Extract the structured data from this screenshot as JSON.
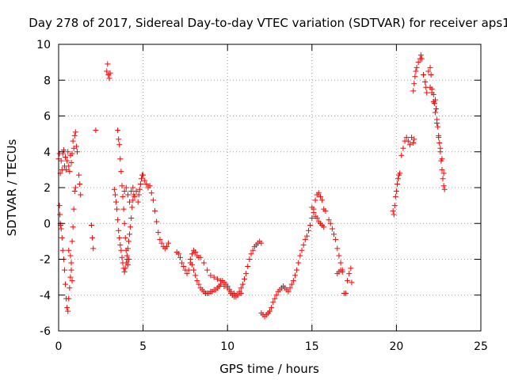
{
  "chart_data": {
    "type": "scatter",
    "title": "Day 278 of 2017, Sidereal Day-to-day VTEC variation (SDTVAR) for receiver aps1",
    "xlabel": "GPS time / hours",
    "ylabel": "SDTVAR / TECUs",
    "xlim": [
      0,
      25
    ],
    "ylim": [
      -6,
      10
    ],
    "xticks": [
      0,
      5,
      10,
      15,
      20,
      25
    ],
    "yticks": [
      -6,
      -4,
      -2,
      0,
      2,
      4,
      6,
      8,
      10
    ],
    "grid": true,
    "marker": "+",
    "color": "#ff0000",
    "series": [
      {
        "name": "aps1",
        "points": [
          [
            0.0,
            3.6
          ],
          [
            0.05,
            3.9
          ],
          [
            0.1,
            2.8
          ],
          [
            0.15,
            3.5
          ],
          [
            0.2,
            3.0
          ],
          [
            0.25,
            3.9
          ],
          [
            0.3,
            4.1
          ],
          [
            0.35,
            3.2
          ],
          [
            0.4,
            3.7
          ],
          [
            0.45,
            3.0
          ],
          [
            0.5,
            3.5
          ],
          [
            0.55,
            4.0
          ],
          [
            0.6,
            3.2
          ],
          [
            0.65,
            2.9
          ],
          [
            0.7,
            3.8
          ],
          [
            0.75,
            3.4
          ],
          [
            0.8,
            3.9
          ],
          [
            0.85,
            4.6
          ],
          [
            0.9,
            4.2
          ],
          [
            0.95,
            4.9
          ],
          [
            1.0,
            5.1
          ],
          [
            1.05,
            4.3
          ],
          [
            1.1,
            4.0
          ],
          [
            0.05,
            1.0
          ],
          [
            0.08,
            0.5
          ],
          [
            0.1,
            0.0
          ],
          [
            0.12,
            -0.1
          ],
          [
            0.15,
            -0.3
          ],
          [
            0.2,
            -0.8
          ],
          [
            0.25,
            -1.5
          ],
          [
            0.3,
            -2.0
          ],
          [
            0.35,
            -2.6
          ],
          [
            0.4,
            -3.4
          ],
          [
            0.45,
            -4.2
          ],
          [
            0.5,
            -4.7
          ],
          [
            0.55,
            -4.9
          ],
          [
            0.6,
            -4.2
          ],
          [
            0.65,
            -3.6
          ],
          [
            0.7,
            -3.0
          ],
          [
            0.75,
            -2.2
          ],
          [
            0.8,
            -1.0
          ],
          [
            0.85,
            -0.2
          ],
          [
            0.9,
            0.8
          ],
          [
            0.95,
            1.8
          ],
          [
            1.0,
            2.0
          ],
          [
            0.6,
            -1.5
          ],
          [
            0.7,
            -1.8
          ],
          [
            0.75,
            -2.6
          ],
          [
            0.8,
            -3.2
          ],
          [
            1.2,
            2.7
          ],
          [
            1.25,
            2.2
          ],
          [
            1.3,
            1.6
          ],
          [
            1.95,
            -0.1
          ],
          [
            2.0,
            -0.8
          ],
          [
            2.05,
            -1.4
          ],
          [
            2.2,
            5.2
          ],
          [
            2.85,
            8.5
          ],
          [
            2.9,
            8.9
          ],
          [
            2.95,
            8.3
          ],
          [
            3.0,
            8.1
          ],
          [
            3.05,
            8.4
          ],
          [
            3.3,
            1.9
          ],
          [
            3.35,
            1.6
          ],
          [
            3.4,
            1.2
          ],
          [
            3.45,
            0.8
          ],
          [
            3.5,
            0.2
          ],
          [
            3.55,
            -0.4
          ],
          [
            3.6,
            -0.8
          ],
          [
            3.65,
            -1.2
          ],
          [
            3.7,
            -1.5
          ],
          [
            3.75,
            -1.9
          ],
          [
            3.8,
            -2.2
          ],
          [
            3.85,
            -2.5
          ],
          [
            3.9,
            -2.7
          ],
          [
            3.95,
            -2.5
          ],
          [
            4.0,
            -2.2
          ],
          [
            4.05,
            -1.8
          ],
          [
            4.1,
            -1.4
          ],
          [
            4.15,
            -1.0
          ],
          [
            4.2,
            -0.6
          ],
          [
            4.25,
            -0.2
          ],
          [
            4.3,
            0.3
          ],
          [
            4.35,
            0.9
          ],
          [
            4.4,
            1.3
          ],
          [
            4.45,
            1.6
          ],
          [
            3.5,
            5.2
          ],
          [
            3.55,
            4.7
          ],
          [
            3.6,
            4.4
          ],
          [
            3.65,
            3.6
          ],
          [
            3.7,
            2.9
          ],
          [
            3.75,
            2.1
          ],
          [
            3.8,
            1.5
          ],
          [
            3.85,
            0.8
          ],
          [
            3.9,
            0.0
          ],
          [
            3.95,
            -0.8
          ],
          [
            4.0,
            -1.5
          ],
          [
            4.05,
            -2.0
          ],
          [
            4.1,
            -2.3
          ],
          [
            4.15,
            -2.0
          ],
          [
            3.9,
            1.8
          ],
          [
            4.0,
            2.0
          ],
          [
            4.1,
            1.6
          ],
          [
            4.2,
            1.2
          ],
          [
            4.3,
            1.8
          ],
          [
            4.4,
            2.0
          ],
          [
            4.5,
            1.5
          ],
          [
            4.6,
            1.8
          ],
          [
            4.7,
            1.2
          ],
          [
            4.75,
            1.6
          ],
          [
            4.8,
            1.9
          ],
          [
            4.85,
            2.2
          ],
          [
            4.9,
            2.5
          ],
          [
            4.95,
            2.7
          ],
          [
            5.0,
            2.7
          ],
          [
            5.1,
            2.4
          ],
          [
            5.2,
            2.2
          ],
          [
            5.3,
            2.0
          ],
          [
            5.4,
            2.1
          ],
          [
            5.5,
            1.7
          ],
          [
            5.6,
            1.3
          ],
          [
            5.7,
            0.7
          ],
          [
            5.8,
            0.1
          ],
          [
            5.9,
            -0.5
          ],
          [
            6.0,
            -0.9
          ],
          [
            6.1,
            -1.1
          ],
          [
            6.2,
            -1.3
          ],
          [
            6.3,
            -1.4
          ],
          [
            6.4,
            -1.3
          ],
          [
            6.5,
            -1.1
          ],
          [
            7.0,
            -1.6
          ],
          [
            7.1,
            -1.7
          ],
          [
            7.2,
            -1.9
          ],
          [
            7.3,
            -2.2
          ],
          [
            7.4,
            -2.4
          ],
          [
            7.5,
            -2.6
          ],
          [
            7.6,
            -2.8
          ],
          [
            7.7,
            -2.6
          ],
          [
            7.8,
            -2.2
          ],
          [
            7.9,
            -1.7
          ],
          [
            8.0,
            -1.5
          ],
          [
            8.1,
            -1.6
          ],
          [
            8.2,
            -1.8
          ],
          [
            8.3,
            -1.9
          ],
          [
            7.8,
            -2.0
          ],
          [
            7.9,
            -2.3
          ],
          [
            8.0,
            -2.6
          ],
          [
            8.1,
            -2.9
          ],
          [
            8.2,
            -3.2
          ],
          [
            8.3,
            -3.4
          ],
          [
            8.4,
            -3.6
          ],
          [
            8.5,
            -3.7
          ],
          [
            8.6,
            -3.8
          ],
          [
            8.7,
            -3.9
          ],
          [
            8.8,
            -3.9
          ],
          [
            8.9,
            -3.9
          ],
          [
            9.0,
            -3.8
          ],
          [
            9.1,
            -3.8
          ],
          [
            9.2,
            -3.7
          ],
          [
            9.3,
            -3.7
          ],
          [
            9.4,
            -3.6
          ],
          [
            9.5,
            -3.5
          ],
          [
            9.6,
            -3.4
          ],
          [
            8.4,
            -1.9
          ],
          [
            8.6,
            -2.2
          ],
          [
            8.8,
            -2.6
          ],
          [
            9.0,
            -2.9
          ],
          [
            9.2,
            -3.0
          ],
          [
            9.4,
            -3.1
          ],
          [
            9.6,
            -3.2
          ],
          [
            9.8,
            -3.5
          ],
          [
            10.0,
            -3.6
          ],
          [
            10.2,
            -3.8
          ],
          [
            10.4,
            -3.9
          ],
          [
            10.6,
            -4.0
          ],
          [
            10.8,
            -3.9
          ],
          [
            9.7,
            -3.2
          ],
          [
            9.8,
            -3.3
          ],
          [
            9.9,
            -3.4
          ],
          [
            10.0,
            -3.5
          ],
          [
            10.1,
            -3.7
          ],
          [
            10.2,
            -3.9
          ],
          [
            10.3,
            -4.0
          ],
          [
            10.4,
            -4.1
          ],
          [
            10.5,
            -4.1
          ],
          [
            10.6,
            -4.0
          ],
          [
            10.7,
            -3.8
          ],
          [
            10.8,
            -3.6
          ],
          [
            10.9,
            -3.4
          ],
          [
            11.0,
            -3.1
          ],
          [
            11.1,
            -2.8
          ],
          [
            11.2,
            -2.4
          ],
          [
            11.3,
            -2.0
          ],
          [
            11.4,
            -1.7
          ],
          [
            11.5,
            -1.5
          ],
          [
            11.6,
            -1.3
          ],
          [
            11.7,
            -1.2
          ],
          [
            11.8,
            -1.1
          ],
          [
            11.9,
            -1.0
          ],
          [
            12.0,
            -1.1
          ],
          [
            12.0,
            -5.0
          ],
          [
            12.1,
            -5.1
          ],
          [
            12.2,
            -5.2
          ],
          [
            12.3,
            -5.1
          ],
          [
            12.4,
            -5.0
          ],
          [
            12.5,
            -4.9
          ],
          [
            12.6,
            -4.7
          ],
          [
            12.7,
            -4.4
          ],
          [
            12.8,
            -4.2
          ],
          [
            12.9,
            -4.0
          ],
          [
            13.0,
            -3.8
          ],
          [
            13.1,
            -3.7
          ],
          [
            13.2,
            -3.6
          ],
          [
            13.3,
            -3.5
          ],
          [
            13.4,
            -3.6
          ],
          [
            13.5,
            -3.7
          ],
          [
            13.6,
            -3.8
          ],
          [
            13.7,
            -3.6
          ],
          [
            13.8,
            -3.4
          ],
          [
            13.9,
            -3.2
          ],
          [
            14.0,
            -2.9
          ],
          [
            14.1,
            -2.6
          ],
          [
            14.2,
            -2.2
          ],
          [
            14.3,
            -1.8
          ],
          [
            14.4,
            -1.5
          ],
          [
            14.5,
            -1.2
          ],
          [
            14.6,
            -0.9
          ],
          [
            14.7,
            -0.7
          ],
          [
            14.8,
            -0.4
          ],
          [
            14.9,
            -0.1
          ],
          [
            15.0,
            0.3
          ],
          [
            15.1,
            0.8
          ],
          [
            15.2,
            1.3
          ],
          [
            15.3,
            1.6
          ],
          [
            15.4,
            1.7
          ],
          [
            15.5,
            1.5
          ],
          [
            15.6,
            1.3
          ],
          [
            15.7,
            0.8
          ],
          [
            15.8,
            0.7
          ],
          [
            15.0,
            0.9
          ],
          [
            15.1,
            0.6
          ],
          [
            15.2,
            0.4
          ],
          [
            15.3,
            0.3
          ],
          [
            15.4,
            0.1
          ],
          [
            15.5,
            0.0
          ],
          [
            15.6,
            -0.1
          ],
          [
            15.7,
            -0.2
          ],
          [
            16.0,
            0.2
          ],
          [
            16.1,
            0.0
          ],
          [
            16.2,
            -0.3
          ],
          [
            16.3,
            -0.6
          ],
          [
            16.4,
            -0.9
          ],
          [
            16.5,
            -1.4
          ],
          [
            16.6,
            -1.8
          ],
          [
            16.7,
            -2.2
          ],
          [
            16.8,
            -2.6
          ],
          [
            16.5,
            -2.8
          ],
          [
            16.6,
            -2.7
          ],
          [
            16.7,
            -2.6
          ],
          [
            16.8,
            -2.7
          ],
          [
            16.9,
            -3.9
          ],
          [
            17.0,
            -3.9
          ],
          [
            17.1,
            -3.2
          ],
          [
            17.2,
            -2.8
          ],
          [
            17.3,
            -2.5
          ],
          [
            17.35,
            -3.3
          ],
          [
            19.8,
            0.7
          ],
          [
            19.85,
            0.5
          ],
          [
            19.9,
            1.0
          ],
          [
            19.95,
            1.5
          ],
          [
            20.0,
            1.8
          ],
          [
            20.05,
            2.2
          ],
          [
            20.1,
            2.5
          ],
          [
            20.15,
            2.7
          ],
          [
            20.2,
            2.8
          ],
          [
            20.3,
            3.8
          ],
          [
            20.4,
            4.2
          ],
          [
            20.5,
            4.6
          ],
          [
            20.6,
            4.8
          ],
          [
            20.7,
            4.6
          ],
          [
            20.8,
            4.4
          ],
          [
            20.9,
            4.8
          ],
          [
            21.0,
            4.5
          ],
          [
            21.05,
            4.7
          ],
          [
            21.0,
            7.4
          ],
          [
            21.05,
            7.8
          ],
          [
            21.1,
            8.2
          ],
          [
            21.15,
            8.5
          ],
          [
            21.2,
            8.7
          ],
          [
            21.3,
            9.0
          ],
          [
            21.4,
            9.2
          ],
          [
            21.45,
            9.4
          ],
          [
            21.5,
            9.2
          ],
          [
            21.6,
            8.3
          ],
          [
            21.7,
            7.9
          ],
          [
            21.75,
            7.6
          ],
          [
            21.8,
            7.3
          ],
          [
            21.9,
            8.5
          ],
          [
            22.0,
            8.7
          ],
          [
            22.05,
            8.3
          ],
          [
            22.1,
            7.5
          ],
          [
            22.2,
            7.2
          ],
          [
            22.25,
            6.7
          ],
          [
            22.3,
            6.9
          ],
          [
            22.35,
            6.4
          ],
          [
            22.4,
            5.8
          ],
          [
            22.45,
            5.4
          ],
          [
            22.5,
            4.9
          ],
          [
            22.55,
            4.5
          ],
          [
            22.6,
            4.0
          ],
          [
            22.65,
            3.5
          ],
          [
            22.7,
            3.0
          ],
          [
            22.75,
            2.5
          ],
          [
            22.8,
            2.1
          ],
          [
            22.85,
            1.9
          ],
          [
            22.0,
            7.6
          ],
          [
            22.1,
            7.3
          ],
          [
            22.2,
            6.8
          ],
          [
            22.3,
            6.2
          ],
          [
            22.4,
            5.6
          ],
          [
            22.5,
            4.8
          ],
          [
            22.6,
            4.2
          ],
          [
            22.7,
            3.6
          ],
          [
            22.8,
            2.8
          ]
        ]
      }
    ]
  }
}
